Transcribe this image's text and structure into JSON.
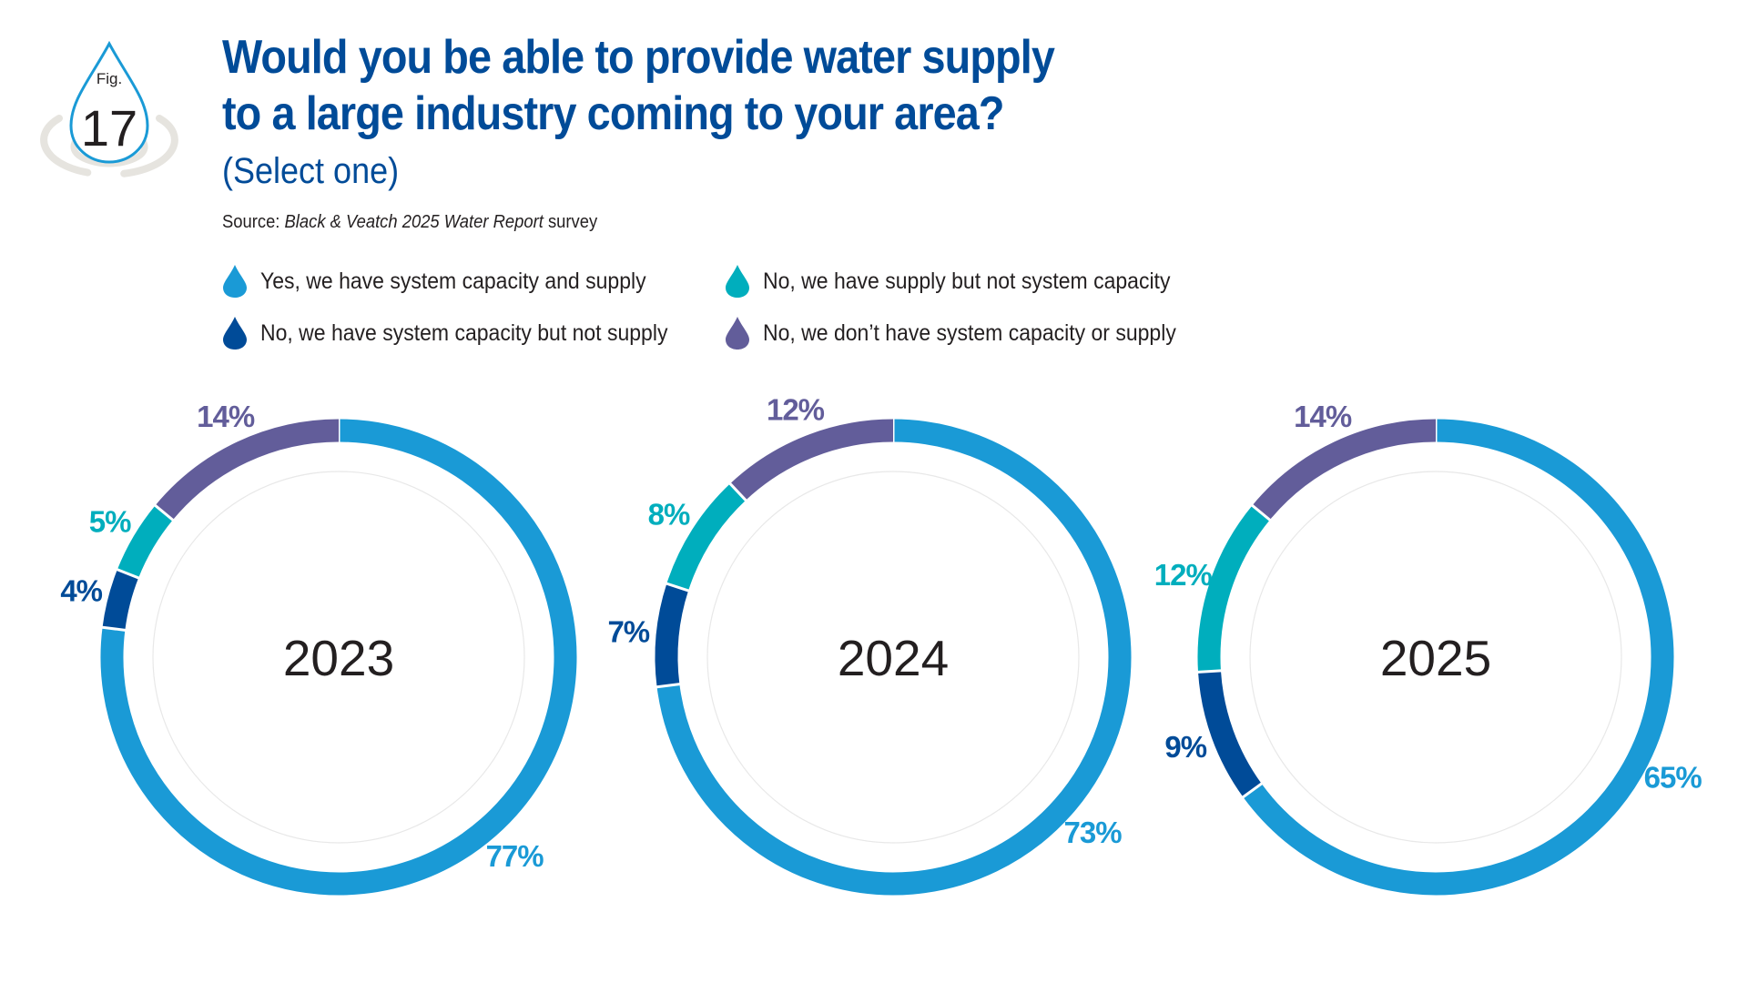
{
  "figure": {
    "label": "Fig.",
    "number": "17"
  },
  "title_line1": "Would you be able to provide water supply",
  "title_line2": "to a large industry coming to your area?",
  "subtitle": "(Select one)",
  "source": {
    "prefix": "Source: ",
    "publication": "Black & Veatch 2025 Water Report",
    "suffix": " survey"
  },
  "colors": {
    "yes": "#1a9ad6",
    "supply_no_capacity": "#00aebd",
    "capacity_no_supply": "#004b98",
    "neither": "#625d9a",
    "title": "#004b98"
  },
  "legend": [
    {
      "key": "yes",
      "label": "Yes, we have system capacity and supply",
      "color": "#1a9ad6"
    },
    {
      "key": "supply_no_capacity",
      "label": "No, we have supply but not system capacity",
      "color": "#00aebd"
    },
    {
      "key": "capacity_no_supply",
      "label": "No, we have system capacity but not supply",
      "color": "#004b98"
    },
    {
      "key": "neither",
      "label": "No, we don’t have system capacity or supply",
      "color": "#625d9a"
    }
  ],
  "chart_data": [
    {
      "type": "pie",
      "donut": true,
      "title": "2023",
      "categories": [
        "Yes, we have system capacity and supply",
        "No, we have system capacity but not supply",
        "No, we have supply but not system capacity",
        "No, we don’t have system capacity or supply"
      ],
      "values": [
        77,
        4,
        5,
        14
      ],
      "labels": [
        "77%",
        "4%",
        "5%",
        "14%"
      ],
      "colors": [
        "#1a9ad6",
        "#004b98",
        "#00aebd",
        "#625d9a"
      ]
    },
    {
      "type": "pie",
      "donut": true,
      "title": "2024",
      "categories": [
        "Yes, we have system capacity and supply",
        "No, we have system capacity but not supply",
        "No, we have supply but not system capacity",
        "No, we don’t have system capacity or supply"
      ],
      "values": [
        73,
        7,
        8,
        12
      ],
      "labels": [
        "73%",
        "7%",
        "8%",
        "12%"
      ],
      "colors": [
        "#1a9ad6",
        "#004b98",
        "#00aebd",
        "#625d9a"
      ]
    },
    {
      "type": "pie",
      "donut": true,
      "title": "2025",
      "categories": [
        "Yes, we have system capacity and supply",
        "No, we have system capacity but not supply",
        "No, we have supply but not system capacity",
        "No, we don’t have system capacity or supply"
      ],
      "values": [
        65,
        9,
        12,
        14
      ],
      "labels": [
        "65%",
        "9%",
        "12%",
        "14%"
      ],
      "colors": [
        "#1a9ad6",
        "#004b98",
        "#00aebd",
        "#625d9a"
      ]
    }
  ]
}
